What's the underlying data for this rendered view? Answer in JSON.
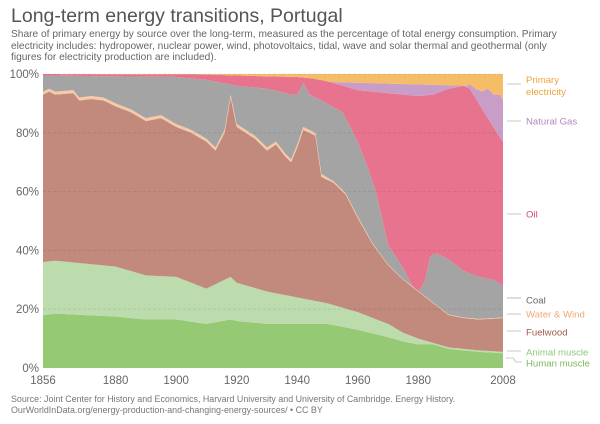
{
  "title": "Long-term energy transitions, Portugal",
  "subtitle": "Share of primary energy by source over the long-term, measured as the percentage of total energy consumption. Primary electricity includes: hydropower, nuclear power, wind, photovoltaics, tidal, wave and solar thermal and geothermal (only figures for electricity production are included).",
  "source_line1": "Source: Joint Center for History and Economics, Harvard University and University of Cambridge. Energy History.",
  "source_line2": "OurWorldInData.org/energy-production-and-changing-energy-sources/ • CC BY",
  "chart_data": {
    "type": "area",
    "stacked": true,
    "title": "Long-term energy transitions, Portugal",
    "xlabel": "",
    "ylabel": "",
    "xlim": [
      1856,
      2008
    ],
    "ylim": [
      0,
      100
    ],
    "x_ticks": [
      1856,
      1880,
      1900,
      1920,
      1940,
      1960,
      1980,
      2008
    ],
    "x_tick_labels": [
      "1856",
      "1880",
      "1900",
      "1920",
      "1940",
      "1960",
      "1980",
      "2008"
    ],
    "y_ticks": [
      0,
      20,
      40,
      60,
      80,
      100
    ],
    "y_tick_labels": [
      "0%",
      "20%",
      "40%",
      "60%",
      "80%",
      "100%"
    ],
    "grid": true,
    "legend_placement": "right",
    "note": "Series values are cumulative upper boundaries (%) of each stacked layer, bottom to top.",
    "series": [
      {
        "name": "Human muscle",
        "color": "#96c974",
        "label_color": "#7cb85a",
        "x": [
          1856,
          1860,
          1870,
          1880,
          1890,
          1900,
          1910,
          1918,
          1920,
          1930,
          1940,
          1950,
          1960,
          1970,
          1975,
          1980,
          1985,
          1990,
          2000,
          2008
        ],
        "top": [
          18,
          18.5,
          18,
          17.5,
          16.5,
          16.5,
          15,
          16.5,
          16,
          15,
          15,
          15,
          13,
          10.5,
          9,
          8,
          8,
          6.5,
          5.5,
          5
        ]
      },
      {
        "name": "Animal muscle",
        "color": "#bcdcad",
        "label_color": "#93c876",
        "x": [
          1856,
          1860,
          1870,
          1880,
          1890,
          1900,
          1910,
          1918,
          1920,
          1930,
          1940,
          1950,
          1960,
          1970,
          1975,
          1980,
          1985,
          1990,
          2000,
          2008
        ],
        "top": [
          36,
          36.5,
          35.5,
          34.5,
          31.5,
          31,
          27,
          31,
          29,
          26,
          24,
          22,
          19,
          15,
          12,
          10,
          8.5,
          7,
          6,
          5.5
        ]
      },
      {
        "name": "Fuelwood",
        "color": "#c28a7d",
        "label_color": "#a05a4a",
        "x": [
          1856,
          1858,
          1860,
          1866,
          1868,
          1872,
          1876,
          1880,
          1885,
          1890,
          1895,
          1900,
          1905,
          1910,
          1913,
          1916,
          1918,
          1920,
          1923,
          1926,
          1930,
          1933,
          1936,
          1938,
          1940,
          1942,
          1944,
          1946,
          1948,
          1952,
          1956,
          1960,
          1965,
          1970,
          1975,
          1980,
          1985,
          1990,
          1995,
          2000,
          2008
        ],
        "top": [
          93,
          94,
          93,
          93.5,
          91,
          91.5,
          91,
          89,
          87,
          84,
          85,
          82,
          80,
          77,
          74,
          80,
          92,
          82,
          80,
          78,
          74,
          76,
          72,
          70,
          75,
          81,
          80,
          79,
          65,
          63,
          59,
          51,
          42,
          35,
          30,
          26,
          22,
          18,
          17,
          16.5,
          17
        ]
      },
      {
        "name": "Water & Wind",
        "color": "#f7c9a6",
        "label_color": "#f0a877",
        "x": [
          1856,
          1858,
          1860,
          1866,
          1868,
          1872,
          1876,
          1880,
          1885,
          1890,
          1895,
          1900,
          1905,
          1910,
          1913,
          1916,
          1918,
          1920,
          1923,
          1926,
          1930,
          1933,
          1936,
          1938,
          1940,
          1942,
          1944,
          1946,
          1948,
          1952,
          1956,
          1960,
          1965,
          1970,
          1975,
          1980,
          1985,
          1990,
          1995,
          2000,
          2008
        ],
        "top": [
          94,
          95,
          94,
          94.5,
          92,
          92.5,
          92,
          90,
          88,
          85,
          86,
          83,
          81,
          78,
          75,
          81,
          93,
          83,
          81,
          79,
          75,
          77,
          73,
          71,
          76,
          82,
          81,
          80,
          66,
          63.5,
          59.5,
          51.5,
          42.3,
          35.2,
          30.2,
          26.2,
          22.2,
          18.2,
          17.2,
          16.7,
          17.2
        ]
      },
      {
        "name": "Coal",
        "color": "#a4a4a4",
        "label_color": "#666666",
        "x": [
          1856,
          1880,
          1900,
          1910,
          1920,
          1930,
          1938,
          1940,
          1942,
          1944,
          1948,
          1955,
          1960,
          1963,
          1966,
          1970,
          1975,
          1978,
          1980,
          1982,
          1984,
          1986,
          1988,
          1990,
          1995,
          2000,
          2005,
          2008
        ],
        "top": [
          99.5,
          99.2,
          99,
          98,
          96,
          95,
          93,
          93,
          97,
          93,
          91,
          87,
          77,
          69,
          60,
          42,
          34,
          28,
          26,
          29,
          38,
          39,
          38,
          37,
          33,
          31,
          30,
          28
        ]
      },
      {
        "name": "Oil",
        "color": "#e8738f",
        "label_color": "#d94770",
        "x": [
          1856,
          1910,
          1920,
          1930,
          1940,
          1945,
          1950,
          1955,
          1960,
          1965,
          1970,
          1975,
          1980,
          1985,
          1990,
          1995,
          1997,
          2000,
          2003,
          2006,
          2008
        ],
        "top": [
          100,
          99.8,
          99.5,
          99.2,
          99,
          98.5,
          97.5,
          96,
          94.5,
          94,
          93.5,
          93,
          92.5,
          93,
          95,
          96,
          95,
          90,
          85,
          80,
          77
        ]
      },
      {
        "name": "Natural Gas",
        "color": "#c89ec9",
        "label_color": "#b483c2",
        "x": [
          1856,
          1996,
          1997,
          1999,
          2001,
          2003,
          2005,
          2007,
          2008
        ],
        "top": [
          100,
          96,
          96.5,
          95,
          94,
          95,
          93,
          93,
          91
        ]
      },
      {
        "name": "Primary electricity",
        "color": "#f6bd68",
        "label_color": "#f0a336",
        "x": [
          1856,
          2008
        ],
        "top": [
          100,
          100
        ]
      }
    ]
  },
  "legend": {
    "items": [
      {
        "label": "Primary",
        "label2": "electricity",
        "color": "#f0a336"
      },
      {
        "label": "Natural Gas",
        "color": "#b483c2"
      },
      {
        "label": "Oil",
        "color": "#d94770"
      },
      {
        "label": "Coal",
        "color": "#666666"
      },
      {
        "label": "Water & Wind",
        "color": "#f0a877"
      },
      {
        "label": "Fuelwood",
        "color": "#a05a4a"
      },
      {
        "label": "Animal muscle",
        "color": "#93c876"
      },
      {
        "label": "Human muscle",
        "color": "#7cb85a"
      }
    ]
  }
}
